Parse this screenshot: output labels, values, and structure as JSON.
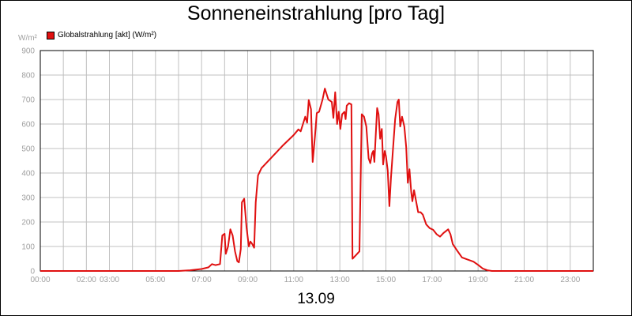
{
  "chart_data": {
    "type": "line",
    "title": "Sonneneinstrahlung [pro Tag]",
    "ylabel": "W/m²",
    "xlabel": "13.09",
    "xlim": [
      0,
      24
    ],
    "ylim": [
      0,
      900
    ],
    "grid": true,
    "legend_position": "top-left",
    "y_ticks": [
      "0",
      "100",
      "200",
      "300",
      "400",
      "500",
      "600",
      "700",
      "800",
      "900"
    ],
    "x_ticks": [
      {
        "x": 0,
        "label": "00:00"
      },
      {
        "x": 2,
        "label": "02:00"
      },
      {
        "x": 3,
        "label": "03:00"
      },
      {
        "x": 5,
        "label": "05:00"
      },
      {
        "x": 7,
        "label": "07:00"
      },
      {
        "x": 9,
        "label": "09:00"
      },
      {
        "x": 11,
        "label": "11:00"
      },
      {
        "x": 13,
        "label": "13:00"
      },
      {
        "x": 15,
        "label": "15:00"
      },
      {
        "x": 17,
        "label": "17:00"
      },
      {
        "x": 19,
        "label": "19:00"
      },
      {
        "x": 21,
        "label": "21:00"
      },
      {
        "x": 23,
        "label": "23:00"
      }
    ],
    "series": [
      {
        "name": "Globalstrahlung [akt] (W/m²)",
        "color": "#e01010",
        "points": [
          [
            0,
            0
          ],
          [
            6,
            0
          ],
          [
            6.5,
            3
          ],
          [
            7,
            8
          ],
          [
            7.3,
            15
          ],
          [
            7.45,
            28
          ],
          [
            7.6,
            24
          ],
          [
            7.8,
            28
          ],
          [
            7.9,
            145
          ],
          [
            8.0,
            152
          ],
          [
            8.05,
            70
          ],
          [
            8.15,
            100
          ],
          [
            8.25,
            170
          ],
          [
            8.35,
            145
          ],
          [
            8.45,
            80
          ],
          [
            8.55,
            40
          ],
          [
            8.62,
            35
          ],
          [
            8.7,
            90
          ],
          [
            8.75,
            280
          ],
          [
            8.85,
            295
          ],
          [
            8.95,
            180
          ],
          [
            9.05,
            100
          ],
          [
            9.12,
            120
          ],
          [
            9.2,
            110
          ],
          [
            9.28,
            95
          ],
          [
            9.35,
            280
          ],
          [
            9.45,
            390
          ],
          [
            9.6,
            420
          ],
          [
            10.0,
            460
          ],
          [
            10.5,
            510
          ],
          [
            11.0,
            555
          ],
          [
            11.2,
            578
          ],
          [
            11.3,
            570
          ],
          [
            11.4,
            600
          ],
          [
            11.5,
            630
          ],
          [
            11.58,
            605
          ],
          [
            11.65,
            698
          ],
          [
            11.75,
            660
          ],
          [
            11.82,
            445
          ],
          [
            11.92,
            550
          ],
          [
            12.0,
            645
          ],
          [
            12.1,
            650
          ],
          [
            12.25,
            700
          ],
          [
            12.35,
            745
          ],
          [
            12.5,
            700
          ],
          [
            12.65,
            690
          ],
          [
            12.72,
            625
          ],
          [
            12.8,
            730
          ],
          [
            12.88,
            600
          ],
          [
            12.95,
            650
          ],
          [
            13.02,
            580
          ],
          [
            13.1,
            640
          ],
          [
            13.2,
            650
          ],
          [
            13.25,
            620
          ],
          [
            13.3,
            675
          ],
          [
            13.4,
            685
          ],
          [
            13.5,
            680
          ],
          [
            13.55,
            50
          ],
          [
            13.7,
            65
          ],
          [
            13.85,
            80
          ],
          [
            13.95,
            640
          ],
          [
            14.05,
            630
          ],
          [
            14.15,
            590
          ],
          [
            14.25,
            460
          ],
          [
            14.32,
            440
          ],
          [
            14.4,
            480
          ],
          [
            14.45,
            490
          ],
          [
            14.5,
            445
          ],
          [
            14.55,
            540
          ],
          [
            14.62,
            665
          ],
          [
            14.68,
            640
          ],
          [
            14.75,
            540
          ],
          [
            14.82,
            580
          ],
          [
            14.88,
            435
          ],
          [
            14.95,
            490
          ],
          [
            15.0,
            470
          ],
          [
            15.08,
            410
          ],
          [
            15.15,
            265
          ],
          [
            15.22,
            380
          ],
          [
            15.3,
            490
          ],
          [
            15.4,
            620
          ],
          [
            15.5,
            690
          ],
          [
            15.56,
            700
          ],
          [
            15.62,
            590
          ],
          [
            15.7,
            630
          ],
          [
            15.8,
            590
          ],
          [
            15.88,
            505
          ],
          [
            15.95,
            360
          ],
          [
            16.02,
            415
          ],
          [
            16.1,
            320
          ],
          [
            16.15,
            285
          ],
          [
            16.22,
            330
          ],
          [
            16.3,
            290
          ],
          [
            16.4,
            240
          ],
          [
            16.5,
            240
          ],
          [
            16.6,
            230
          ],
          [
            16.75,
            190
          ],
          [
            16.9,
            175
          ],
          [
            17.05,
            168
          ],
          [
            17.2,
            150
          ],
          [
            17.35,
            140
          ],
          [
            17.5,
            155
          ],
          [
            17.7,
            170
          ],
          [
            17.8,
            150
          ],
          [
            17.9,
            110
          ],
          [
            18.1,
            82
          ],
          [
            18.3,
            55
          ],
          [
            18.5,
            48
          ],
          [
            18.8,
            38
          ],
          [
            19.0,
            25
          ],
          [
            19.2,
            10
          ],
          [
            19.4,
            3
          ],
          [
            19.6,
            0
          ],
          [
            24,
            0
          ]
        ]
      }
    ]
  }
}
